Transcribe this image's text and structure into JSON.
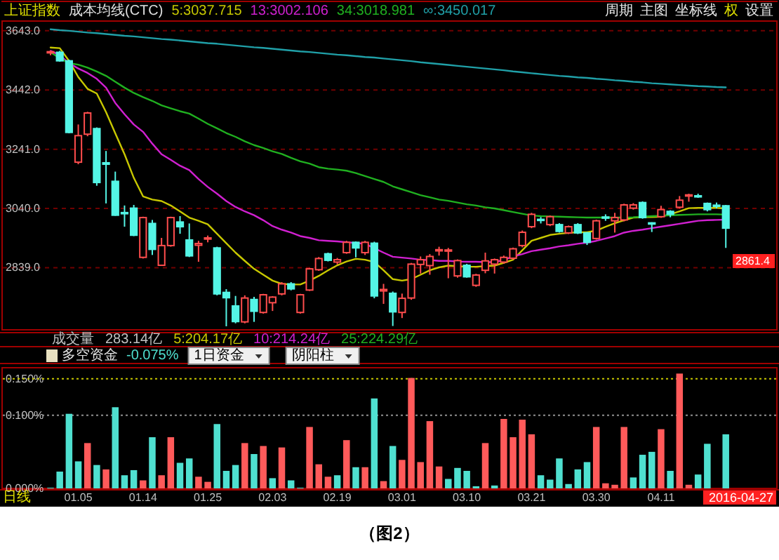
{
  "chart_data": [
    {
      "type": "candlestick",
      "title": "上证指数",
      "subtitle": "成本均线(CTC)",
      "legend": "top",
      "grid": "y",
      "tick_labels": "y",
      "categories": [
        null,
        null,
        null,
        null,
        null,
        null,
        null,
        null,
        null,
        null,
        null,
        null,
        null,
        null,
        null,
        null,
        null,
        null,
        null,
        null,
        null,
        null,
        null,
        null,
        null,
        null,
        null,
        null,
        null,
        null,
        null,
        null,
        null,
        null,
        null,
        null,
        null,
        null,
        null,
        null,
        null,
        null,
        null,
        null,
        null,
        null,
        null,
        null,
        null,
        null,
        null,
        null,
        null,
        null,
        null,
        null,
        null,
        null,
        null,
        null,
        null,
        null,
        null,
        null,
        null,
        null,
        null,
        null,
        null,
        null,
        null,
        null,
        null,
        null
      ],
      "ohlc": [
        [
          3568,
          3576,
          3560,
          3572
        ],
        [
          3570,
          3575,
          3538,
          3541
        ],
        [
          3541,
          3545,
          3295,
          3298
        ],
        [
          3197,
          3325,
          3190,
          3287
        ],
        [
          3292,
          3368,
          3285,
          3364
        ],
        [
          3311,
          3315,
          3117,
          3128
        ],
        [
          3195,
          3235,
          3057,
          3190
        ],
        [
          3132,
          3165,
          3015,
          3017
        ],
        [
          3026,
          3050,
          2978,
          3022
        ],
        [
          3041,
          3052,
          2946,
          2949
        ],
        [
          2874,
          3012,
          2870,
          3009
        ],
        [
          2989,
          3001,
          2882,
          2901
        ],
        [
          2847,
          2940,
          2845,
          2914
        ],
        [
          2914,
          3012,
          2910,
          3009
        ],
        [
          2994,
          3014,
          2954,
          2978
        ],
        [
          2933,
          2989,
          2875,
          2879
        ],
        [
          2915,
          2930,
          2859,
          2921
        ],
        [
          2936,
          2948,
          2925,
          2940
        ],
        [
          2906,
          2910,
          2745,
          2750
        ],
        [
          2755,
          2766,
          2640,
          2737
        ],
        [
          2709,
          2743,
          2650,
          2656
        ],
        [
          2655,
          2745,
          2650,
          2736
        ],
        [
          2731,
          2740,
          2655,
          2691
        ],
        [
          2687,
          2750,
          2683,
          2747
        ],
        [
          2720,
          2742,
          2692,
          2739
        ],
        [
          2750,
          2790,
          2745,
          2784
        ],
        [
          2784,
          2790,
          2762,
          2767
        ],
        [
          2687,
          2750,
          2683,
          2747
        ],
        [
          2763,
          2838,
          2760,
          2835
        ],
        [
          2832,
          2875,
          2828,
          2870
        ],
        [
          2886,
          2890,
          2860,
          2864
        ],
        [
          2858,
          2872,
          2850,
          2866
        ],
        [
          2890,
          2930,
          2886,
          2925
        ],
        [
          2925,
          2928,
          2874,
          2906
        ],
        [
          2890,
          2930,
          2882,
          2925
        ],
        [
          2922,
          2927,
          2735,
          2743
        ],
        [
          2760,
          2784,
          2716,
          2765
        ],
        [
          2752,
          2758,
          2641,
          2689
        ],
        [
          2687,
          2751,
          2668,
          2735
        ],
        [
          2736,
          2855,
          2730,
          2851
        ],
        [
          2850,
          2877,
          2819,
          2866
        ],
        [
          2846,
          2885,
          2815,
          2877
        ],
        [
          2896,
          2910,
          2880,
          2900
        ],
        [
          2896,
          2906,
          2803,
          2899
        ],
        [
          2811,
          2867,
          2805,
          2863
        ],
        [
          2847,
          2852,
          2805,
          2808
        ],
        [
          2779,
          2818,
          2774,
          2814
        ],
        [
          2830,
          2890,
          2820,
          2862
        ],
        [
          2851,
          2870,
          2819,
          2866
        ],
        [
          2858,
          2880,
          2852,
          2874
        ],
        [
          2871,
          2907,
          2866,
          2903
        ],
        [
          2914,
          2965,
          2908,
          2959
        ],
        [
          2978,
          3025,
          2973,
          3020
        ],
        [
          3003,
          3011,
          2989,
          3000
        ],
        [
          2985,
          3016,
          2980,
          3012
        ],
        [
          2985,
          2990,
          2958,
          2962
        ],
        [
          2957,
          2982,
          2953,
          2978
        ],
        [
          2985,
          2990,
          2953,
          2957
        ],
        [
          2957,
          2960,
          2916,
          2925
        ],
        [
          2938,
          3002,
          2934,
          2998
        ],
        [
          3011,
          3020,
          2998,
          3007
        ],
        [
          2998,
          3025,
          2958,
          3009
        ],
        [
          3001,
          3056,
          2996,
          3052
        ],
        [
          3041,
          3058,
          3036,
          3052
        ],
        [
          3060,
          3064,
          3005,
          3009
        ],
        [
          2991,
          2993,
          2960,
          2987
        ],
        [
          3012,
          3049,
          3008,
          3036
        ],
        [
          3030,
          3034,
          3010,
          3020
        ],
        [
          3044,
          3082,
          3040,
          3068
        ],
        [
          3082,
          3090,
          3063,
          3086
        ],
        [
          3083,
          3090,
          3076,
          3080
        ],
        [
          3057,
          3060,
          3030,
          3036
        ],
        [
          3051,
          3060,
          3040,
          3048
        ],
        [
          3049,
          3052,
          2906,
          2973
        ]
      ],
      "colors": [
        "#ff4d4d",
        "#54f5e6",
        "#54f5e6",
        "#ff4d4d",
        "#ff4d4d",
        "#54f5e6",
        "#54f5e6",
        "#54f5e6",
        "#54f5e6",
        "#54f5e6",
        "#ff4d4d",
        "#54f5e6",
        "#ff4d4d",
        "#ff4d4d",
        "#54f5e6",
        "#54f5e6",
        "#ff4d4d",
        "#ff4d4d",
        "#54f5e6",
        "#54f5e6",
        "#54f5e6",
        "#ff4d4d",
        "#54f5e6",
        "#ff4d4d",
        "#ff4d4d",
        "#ff4d4d",
        "#54f5e6",
        "#ff4d4d",
        "#ff4d4d",
        "#ff4d4d",
        "#54f5e6",
        "#ff4d4d",
        "#ff4d4d",
        "#54f5e6",
        "#ff4d4d",
        "#54f5e6",
        "#ff4d4d",
        "#54f5e6",
        "#ff4d4d",
        "#ff4d4d",
        "#ff4d4d",
        "#ff4d4d",
        "#ff4d4d",
        "#ff4d4d",
        "#ff4d4d",
        "#54f5e6",
        "#ff4d4d",
        "#ff4d4d",
        "#ff4d4d",
        "#ff4d4d",
        "#ff4d4d",
        "#ff4d4d",
        "#ff4d4d",
        "#54f5e6",
        "#ff4d4d",
        "#54f5e6",
        "#ff4d4d",
        "#54f5e6",
        "#54f5e6",
        "#ff4d4d",
        "#54f5e6",
        "#ff4d4d",
        "#ff4d4d",
        "#ff4d4d",
        "#54f5e6",
        "#54f5e6",
        "#ff4d4d",
        "#54f5e6",
        "#ff4d4d",
        "#ff4d4d",
        "#54f5e6",
        "#54f5e6",
        "#54f5e6",
        "#54f5e6"
      ],
      "series": [
        {
          "type": "line",
          "name": "5:3037.715",
          "color": "#c8c800",
          "values": [
            3586,
            3584,
            3541,
            3486,
            3446,
            3430,
            3367,
            3295,
            3224,
            3144,
            3081,
            3070,
            3065,
            3050,
            3030,
            3009,
            2998,
            2986,
            2954,
            2922,
            2890,
            2862,
            2835,
            2815,
            2795,
            2784,
            2782,
            2782,
            2795,
            2811,
            2830,
            2847,
            2860,
            2869,
            2866,
            2858,
            2830,
            2800,
            2795,
            2800,
            2815,
            2830,
            2840,
            2846,
            2844,
            2842,
            2842,
            2844,
            2846,
            2855,
            2866,
            2898,
            2930,
            2940,
            2950,
            2954,
            2957,
            2959,
            2959,
            2965,
            2978,
            2990,
            3000,
            3009,
            3010,
            3011,
            3012,
            3020,
            3030,
            3041,
            3042,
            3042,
            3042,
            3040
          ]
        },
        {
          "type": "line",
          "name": "13:3002.106",
          "color": "#d020d0",
          "values": [
            3575,
            3560,
            3533,
            3515,
            3500,
            3480,
            3450,
            3398,
            3360,
            3325,
            3300,
            3260,
            3224,
            3205,
            3185,
            3170,
            3140,
            3113,
            3090,
            3065,
            3045,
            3030,
            3017,
            3000,
            2980,
            2968,
            2958,
            2946,
            2940,
            2932,
            2930,
            2928,
            2925,
            2923,
            2920,
            2905,
            2890,
            2876,
            2873,
            2870,
            2866,
            2865,
            2862,
            2862,
            2860,
            2859,
            2859,
            2858,
            2858,
            2865,
            2877,
            2885,
            2895,
            2900,
            2905,
            2911,
            2915,
            2920,
            2924,
            2930,
            2938,
            2946,
            2958,
            2964,
            2968,
            2973,
            2978,
            2983,
            2988,
            2993,
            2998,
            3000,
            3001,
            3002
          ]
        },
        {
          "type": "line",
          "name": "34:3018.981",
          "color": "#20b020",
          "values": [
            3570,
            3550,
            3533,
            3528,
            3518,
            3505,
            3490,
            3470,
            3450,
            3432,
            3418,
            3405,
            3390,
            3380,
            3370,
            3362,
            3345,
            3327,
            3312,
            3296,
            3283,
            3268,
            3255,
            3245,
            3234,
            3225,
            3212,
            3200,
            3192,
            3180,
            3175,
            3172,
            3168,
            3160,
            3150,
            3140,
            3130,
            3115,
            3105,
            3095,
            3085,
            3078,
            3070,
            3066,
            3060,
            3054,
            3050,
            3044,
            3040,
            3034,
            3028,
            3022,
            3016,
            3014,
            3013,
            3012,
            3011,
            3010,
            3009,
            3009,
            3009,
            3009,
            3009,
            3010,
            3012,
            3014,
            3015,
            3017,
            3018,
            3019,
            3020,
            3020,
            3020,
            3019
          ]
        },
        {
          "type": "line",
          "name": "∞:3450.017",
          "color": "#20a0a8",
          "values": [
            3648,
            3645,
            3643,
            3640,
            3637,
            3635,
            3632,
            3629,
            3626,
            3624,
            3621,
            3618,
            3615,
            3613,
            3610,
            3607,
            3604,
            3601,
            3599,
            3596,
            3593,
            3590,
            3587,
            3585,
            3582,
            3579,
            3576,
            3573,
            3571,
            3568,
            3565,
            3562,
            3560,
            3557,
            3554,
            3552,
            3549,
            3546,
            3543,
            3540,
            3536,
            3533,
            3530,
            3527,
            3524,
            3521,
            3518,
            3515,
            3512,
            3509,
            3505,
            3502,
            3499,
            3496,
            3493,
            3490,
            3488,
            3485,
            3483,
            3480,
            3478,
            3475,
            3473,
            3470,
            3468,
            3465,
            3463,
            3461,
            3459,
            3457,
            3455,
            3454,
            3452,
            3451
          ]
        }
      ],
      "ylim": [
        2628,
        3676
      ],
      "yticks": [
        {
          "value": 2839,
          "label": "2839.0"
        },
        {
          "value": 3040,
          "label": "3040.0"
        },
        {
          "value": 3241,
          "label": "3241.0"
        },
        {
          "value": 3442,
          "label": "3442.0"
        },
        {
          "value": 3643,
          "label": "3643.0"
        }
      ],
      "annotations": [
        "周期",
        "主图",
        "坐标线",
        "权",
        "设置",
        {
          "text": "2861.4",
          "y": 2861.4
        }
      ]
    },
    {
      "type": "bar",
      "title": "多空资金",
      "subtitle": "-0.075%",
      "categories": [
        null,
        null,
        null,
        "01.05",
        null,
        null,
        null,
        null,
        null,
        null,
        "01.14",
        null,
        null,
        null,
        null,
        null,
        null,
        "01.25",
        null,
        null,
        null,
        null,
        null,
        null,
        "02.03",
        null,
        null,
        null,
        null,
        null,
        null,
        "02.19",
        null,
        null,
        null,
        null,
        null,
        null,
        "03.01",
        null,
        null,
        null,
        null,
        null,
        null,
        "03.10",
        null,
        null,
        null,
        null,
        null,
        null,
        "03.21",
        null,
        null,
        null,
        null,
        null,
        null,
        "03.30",
        null,
        null,
        null,
        null,
        null,
        null,
        "04.11",
        null,
        null,
        null,
        null,
        null,
        null,
        null
      ],
      "values": [
        0.001,
        0.023,
        0.102,
        0.037,
        0.062,
        0.032,
        0.026,
        0.111,
        0.018,
        0.025,
        0.011,
        0.07,
        0.018,
        0.07,
        0.035,
        0.041,
        0.016,
        0.009,
        0.088,
        0.024,
        0.032,
        0.062,
        0.047,
        0.058,
        0.014,
        0.056,
        0.011,
        0.001,
        0.084,
        0.033,
        0.016,
        0.018,
        0.066,
        0.029,
        0.029,
        0.123,
        0.01,
        0.058,
        0.039,
        0.151,
        0.036,
        0.092,
        0.03,
        0.013,
        0.028,
        0.024,
        0.003,
        0.062,
        0.004,
        0.095,
        0.07,
        0.094,
        0.074,
        0.018,
        0.012,
        0.041,
        0.006,
        0.026,
        0.036,
        0.084,
        0.007,
        0.005,
        0.084,
        0.015,
        0.046,
        0.05,
        0.081,
        0.024,
        0.157,
        0.005,
        0.019,
        0.061,
        null,
        0.074
      ],
      "colors": [
        "#4fe0d0",
        "#4fe0d0",
        "#4fe0d0",
        "#4fe0d0",
        "#ff5a5a",
        "#4fe0d0",
        "#ff5a5a",
        "#4fe0d0",
        "#4fe0d0",
        "#4fe0d0",
        "#ff5a5a",
        "#4fe0d0",
        "#ff5a5a",
        "#ff5a5a",
        "#4fe0d0",
        "#4fe0d0",
        "#ff5a5a",
        "#ff5a5a",
        "#4fe0d0",
        "#4fe0d0",
        "#4fe0d0",
        "#ff5a5a",
        "#4fe0d0",
        "#ff5a5a",
        "#4fe0d0",
        "#ff5a5a",
        "#4fe0d0",
        "#4fe0d0",
        "#ff5a5a",
        "#ff5a5a",
        "#ff5a5a",
        "#4fe0d0",
        "#ff5a5a",
        "#4fe0d0",
        "#ff5a5a",
        "#4fe0d0",
        "#ff5a5a",
        "#4fe0d0",
        "#ff5a5a",
        "#ff5a5a",
        "#ff5a5a",
        "#ff5a5a",
        "#ff5a5a",
        "#4fe0d0",
        "#4fe0d0",
        "#4fe0d0",
        "#4fe0d0",
        "#ff5a5a",
        "#4fe0d0",
        "#ff5a5a",
        "#ff5a5a",
        "#ff5a5a",
        "#ff5a5a",
        "#4fe0d0",
        "#4fe0d0",
        "#4fe0d0",
        "#4fe0d0",
        "#4fe0d0",
        "#4fe0d0",
        "#ff5a5a",
        "#ff5a5a",
        "#ff5a5a",
        "#ff5a5a",
        "#4fe0d0",
        "#4fe0d0",
        "#4fe0d0",
        "#ff5a5a",
        "#4fe0d0",
        "#ff5a5a",
        "#ff5a5a",
        "#4fe0d0",
        "#4fe0d0",
        null,
        "#4fe0d0"
      ],
      "ylim": [
        0,
        0.165
      ],
      "yticks": [
        {
          "value": 0,
          "label": "0.000%"
        },
        {
          "value": 0.1,
          "label": "0.100%"
        },
        {
          "value": 0.15,
          "label": "0.150%"
        }
      ],
      "ref_lines": [
        {
          "axis": "y",
          "value": 0.1,
          "color": "#909090",
          "line_style": "dotted"
        },
        {
          "axis": "y",
          "value": 0.15,
          "color": "#c8c800",
          "line_style": "dotted"
        }
      ],
      "annotations": [
        "成交量",
        "283.14亿",
        "5:204.17亿",
        "10:214.24亿",
        "25:224.29亿",
        "1日资金",
        "阴阳柱",
        "2016-04-27",
        "日线",
        "（图2）"
      ]
    }
  ]
}
